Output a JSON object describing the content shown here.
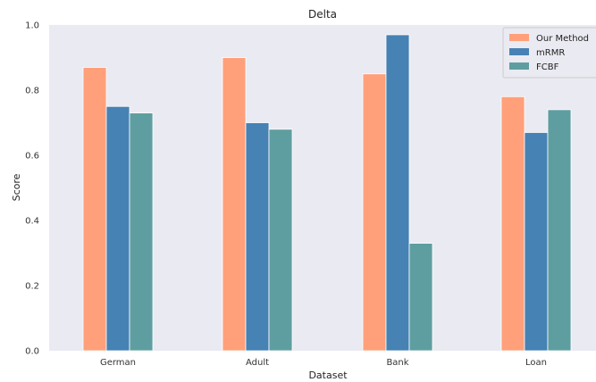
{
  "chart_data": {
    "type": "bar",
    "title": "Delta",
    "xlabel": "Dataset",
    "ylabel": "Score",
    "categories": [
      "German",
      "Adult",
      "Bank",
      "Loan"
    ],
    "series": [
      {
        "name": "Our Method",
        "values": [
          0.87,
          0.9,
          0.85,
          0.78
        ],
        "color": "#FFA07A"
      },
      {
        "name": "mRMR",
        "values": [
          0.75,
          0.7,
          0.97,
          0.67
        ],
        "color": "#4682B4"
      },
      {
        "name": "FCBF",
        "values": [
          0.73,
          0.68,
          0.33,
          0.74
        ],
        "color": "#5F9EA0"
      }
    ],
    "ylim": [
      0,
      1.0
    ],
    "yticks": [
      "0.0",
      "0.2",
      "0.4",
      "0.6",
      "0.8",
      "1.0"
    ],
    "grid": false,
    "legend_position": "top-right",
    "background": "#EAEAF2"
  }
}
